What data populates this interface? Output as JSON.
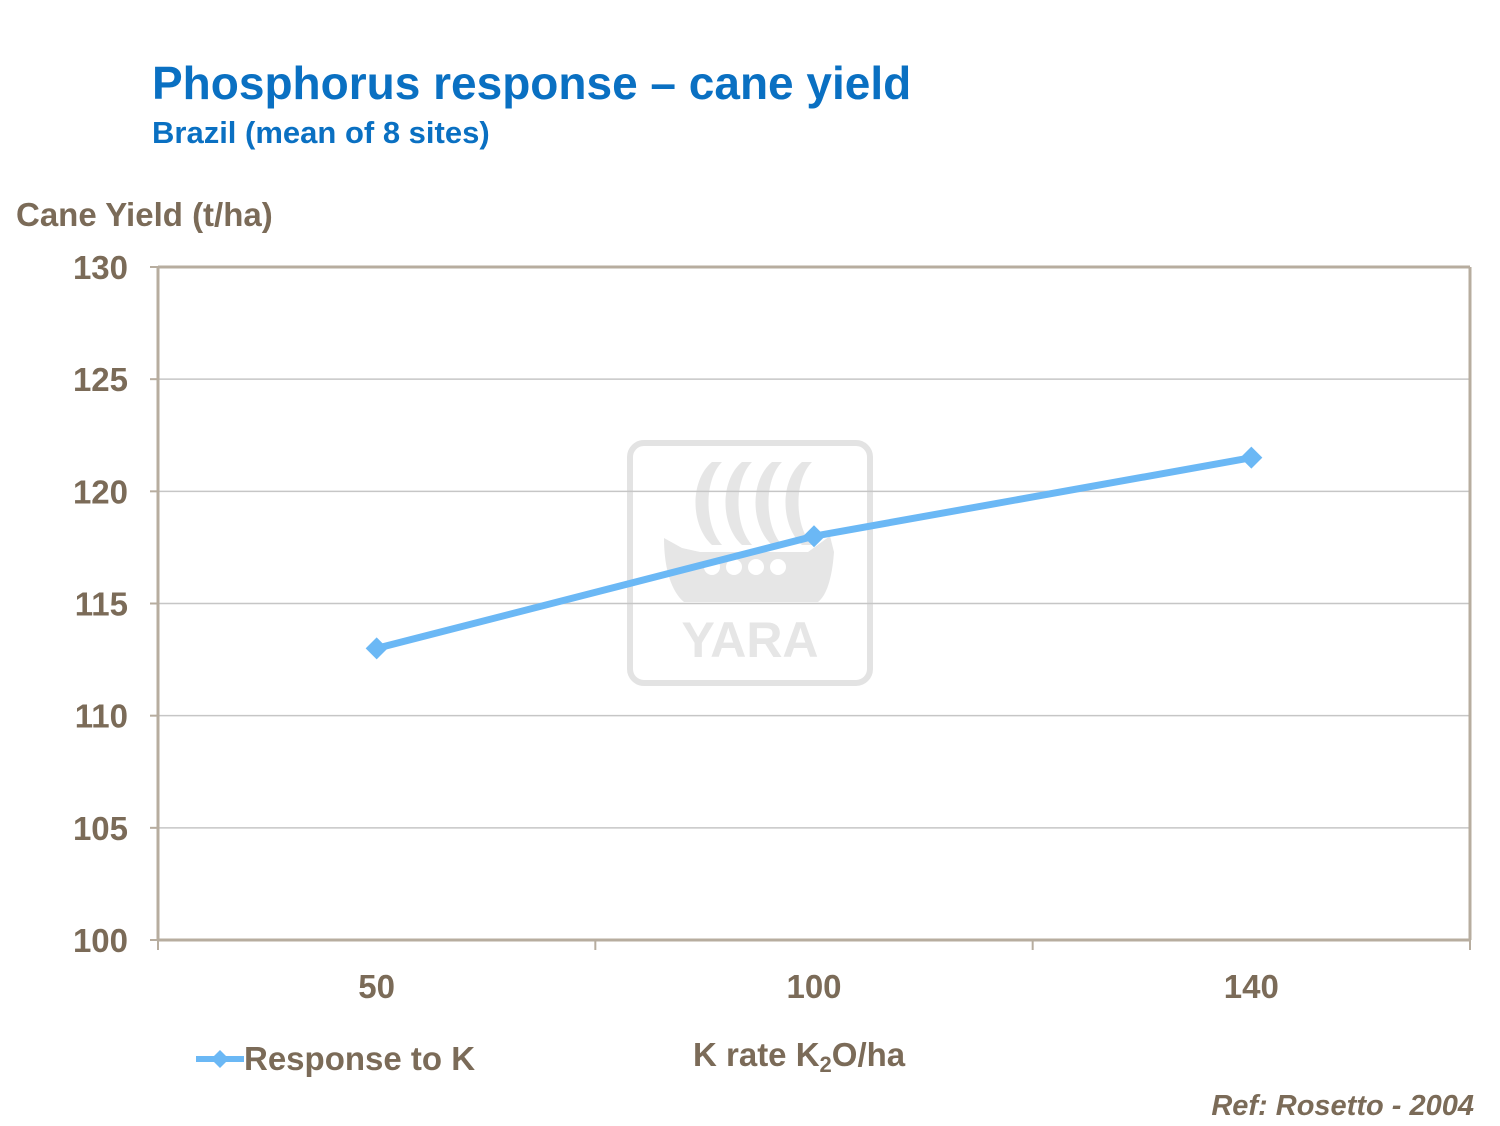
{
  "header": {
    "title": "Phosphorus response – cane yield",
    "subtitle": "Brazil (mean of 8 sites)"
  },
  "watermark": {
    "text": "YARA",
    "icon": "yara-viking-ship-logo"
  },
  "reference": "Ref: Rosetto - 2004",
  "colors": {
    "title": "#0a70c2",
    "axis_text": "#7b6b58",
    "series": "#6bb8f5",
    "grid": "#c6c6c6",
    "frame": "#b7ad9f"
  },
  "chart_data": {
    "type": "line",
    "title": "Phosphorus response – cane yield",
    "subtitle": "Brazil (mean of 8 sites)",
    "ylabel": "Cane Yield (t/ha)",
    "xlabel_main": "K rate K",
    "xlabel_sub": "2",
    "xlabel_rest": "O/ha",
    "categories": [
      "50",
      "100",
      "140"
    ],
    "series": [
      {
        "name": "Response to K",
        "values": [
          113,
          118,
          121.5
        ]
      }
    ],
    "ylim": [
      100,
      130
    ],
    "yticks": [
      100,
      105,
      110,
      115,
      120,
      125,
      130
    ],
    "grid": true,
    "legend_position": "bottom-left"
  }
}
